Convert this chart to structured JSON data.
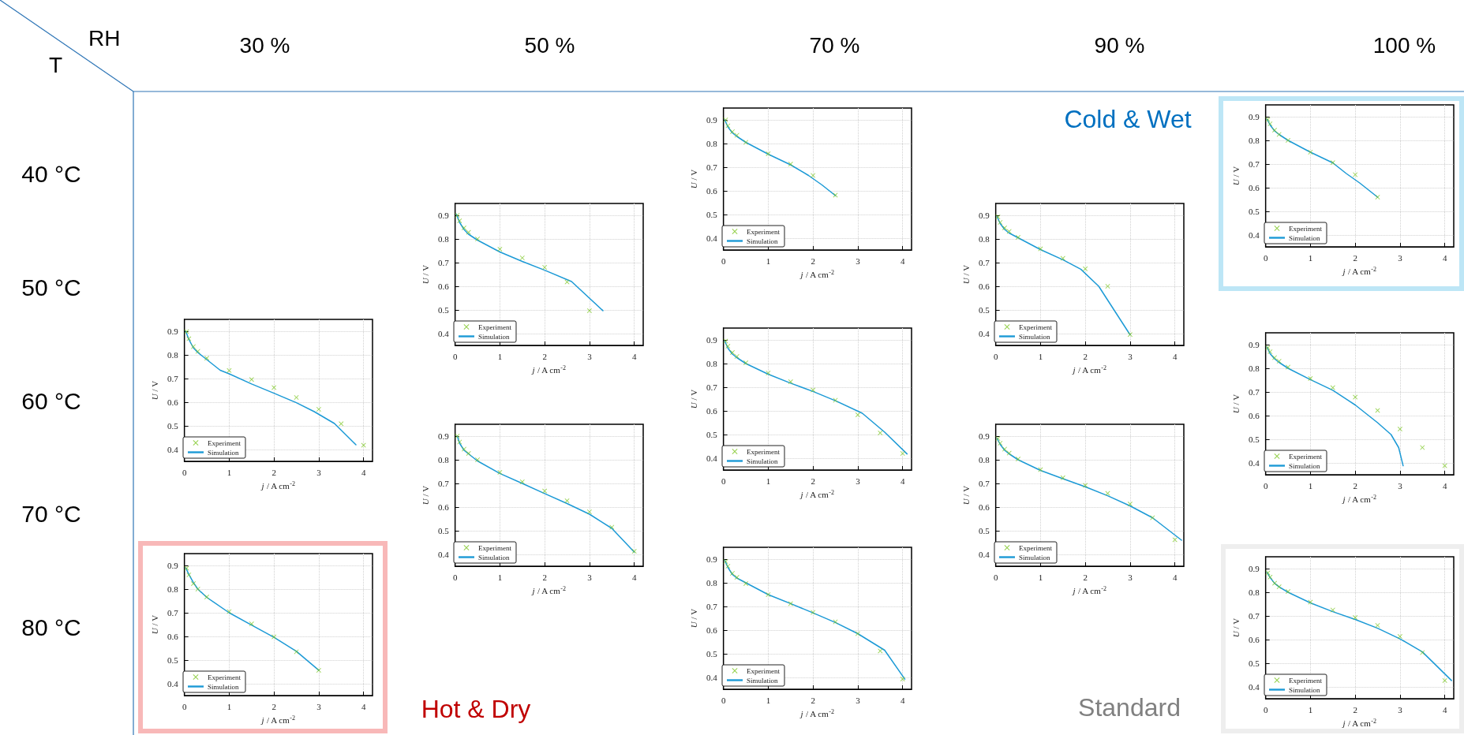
{
  "chart_data": [
    {
      "type": "heatmap",
      "xlabel": "RH",
      "ylabel": "T",
      "categories": [
        "30 %",
        "50 %",
        "70 %",
        "90 %",
        "100 %"
      ],
      "y_categories": [
        "40 °C",
        "50 °C",
        "60 °C",
        "70 °C",
        "80 °C"
      ],
      "cells": [
        [
          null,
          null,
          null,
          null,
          null
        ],
        [
          null,
          null,
          null,
          null,
          null
        ],
        [
          null,
          null,
          null,
          null,
          null
        ],
        [
          null,
          null,
          null,
          null,
          null
        ],
        [
          null,
          null,
          null,
          null,
          null
        ]
      ]
    },
    {
      "type": "line",
      "xlabel": "j / A cm$^{-2}$",
      "ylabel": "U / V",
      "xlim": [
        0,
        4.2
      ],
      "xticks": [
        0,
        1,
        2,
        3,
        4
      ],
      "ylim": [
        0.35,
        0.95
      ],
      "yticks": [
        0.4,
        0.5,
        0.6,
        0.7,
        0.8,
        0.9
      ],
      "grid": true,
      "legend": "bottom left",
      "series": [
        {
          "name": "Experiment",
          "type": "scatter",
          "marker": "cross",
          "color": "#7ac520",
          "x": [
            0.05,
            0.1,
            0.2,
            0.3,
            0.5,
            1,
            1.5,
            2,
            2.5
          ],
          "values": [
            0.9,
            0.875,
            0.85,
            0.835,
            0.805,
            0.757,
            0.713,
            0.665,
            0.582
          ]
        },
        {
          "name": "Simulation",
          "type": "line",
          "marker": "none",
          "line_style": "solid",
          "color": "#1c9ad6",
          "x": [
            0.03,
            0.1,
            0.2,
            0.3,
            0.5,
            1,
            1.5,
            1.9,
            2.2,
            2.5
          ],
          "values": [
            0.9,
            0.87,
            0.845,
            0.83,
            0.805,
            0.755,
            0.71,
            0.665,
            0.625,
            0.58
          ]
        }
      ]
    },
    {
      "type": "line",
      "xlabel": "j / A cm$^{-2}$",
      "ylabel": "U / V",
      "xlim": [
        0,
        4.2
      ],
      "xticks": [
        0,
        1,
        2,
        3,
        4
      ],
      "ylim": [
        0.35,
        0.95
      ],
      "yticks": [
        0.4,
        0.5,
        0.6,
        0.7,
        0.8,
        0.9
      ],
      "grid": true,
      "legend": "bottom left",
      "annotations": [
        "Cold & Wet"
      ],
      "series": [
        {
          "name": "Experiment",
          "type": "scatter",
          "marker": "cross",
          "color": "#7ac520",
          "x": [
            0.05,
            0.1,
            0.2,
            0.3,
            0.5,
            1,
            1.5,
            2,
            2.5
          ],
          "values": [
            0.888,
            0.87,
            0.843,
            0.825,
            0.8,
            0.75,
            0.706,
            0.655,
            0.56
          ]
        },
        {
          "name": "Simulation",
          "type": "line",
          "marker": "none",
          "line_style": "solid",
          "color": "#1c9ad6",
          "x": [
            0.03,
            0.1,
            0.2,
            0.3,
            0.5,
            1,
            1.5,
            1.8,
            2.1,
            2.5
          ],
          "values": [
            0.89,
            0.865,
            0.84,
            0.825,
            0.8,
            0.75,
            0.705,
            0.66,
            0.62,
            0.56
          ]
        }
      ]
    },
    {
      "type": "line",
      "xlabel": "j / A cm$^{-2}$",
      "ylabel": "U / V",
      "xlim": [
        0,
        4.2
      ],
      "xticks": [
        0,
        1,
        2,
        3,
        4
      ],
      "ylim": [
        0.35,
        0.95
      ],
      "yticks": [
        0.4,
        0.5,
        0.6,
        0.7,
        0.8,
        0.9
      ],
      "grid": true,
      "legend": "bottom left",
      "series": [
        {
          "name": "Experiment",
          "type": "scatter",
          "marker": "cross",
          "color": "#7ac520",
          "x": [
            0.05,
            0.1,
            0.2,
            0.3,
            0.5,
            1,
            1.5,
            2,
            2.5,
            3
          ],
          "values": [
            0.9,
            0.877,
            0.847,
            0.828,
            0.8,
            0.757,
            0.72,
            0.68,
            0.618,
            0.497
          ]
        },
        {
          "name": "Simulation",
          "type": "line",
          "marker": "none",
          "line_style": "solid",
          "color": "#1c9ad6",
          "x": [
            0.03,
            0.1,
            0.2,
            0.3,
            0.5,
            1,
            1.5,
            2,
            2.6,
            3.3
          ],
          "values": [
            0.905,
            0.87,
            0.84,
            0.82,
            0.795,
            0.745,
            0.705,
            0.668,
            0.62,
            0.497
          ]
        }
      ]
    },
    {
      "type": "line",
      "xlabel": "j / A cm$^{-2}$",
      "ylabel": "U / V",
      "xlim": [
        0,
        4.2
      ],
      "xticks": [
        0,
        1,
        2,
        3,
        4
      ],
      "ylim": [
        0.35,
        0.95
      ],
      "yticks": [
        0.4,
        0.5,
        0.6,
        0.7,
        0.8,
        0.9
      ],
      "grid": true,
      "legend": "bottom left",
      "series": [
        {
          "name": "Experiment",
          "type": "scatter",
          "marker": "cross",
          "color": "#7ac520",
          "x": [
            0.05,
            0.1,
            0.2,
            0.3,
            0.5,
            1,
            1.5,
            2,
            2.5,
            3
          ],
          "values": [
            0.893,
            0.87,
            0.847,
            0.832,
            0.807,
            0.758,
            0.718,
            0.674,
            0.6,
            0.396
          ]
        },
        {
          "name": "Simulation",
          "type": "line",
          "marker": "none",
          "line_style": "solid",
          "color": "#1c9ad6",
          "x": [
            0.03,
            0.1,
            0.2,
            0.3,
            0.5,
            1,
            1.5,
            1.9,
            2.3,
            3
          ],
          "values": [
            0.895,
            0.865,
            0.84,
            0.825,
            0.805,
            0.755,
            0.712,
            0.672,
            0.6,
            0.395
          ]
        }
      ]
    },
    {
      "type": "line",
      "xlabel": "j / A cm$^{-2}$",
      "ylabel": "U / V",
      "xlim": [
        0,
        4.2
      ],
      "xticks": [
        0,
        1,
        2,
        3,
        4
      ],
      "ylim": [
        0.35,
        0.95
      ],
      "yticks": [
        0.4,
        0.5,
        0.6,
        0.7,
        0.8,
        0.9
      ],
      "grid": true,
      "legend": "bottom left",
      "series": [
        {
          "name": "Experiment",
          "type": "scatter",
          "marker": "cross",
          "color": "#7ac520",
          "x": [
            0.05,
            0.1,
            0.2,
            0.3,
            0.5,
            1,
            1.5,
            2,
            2.5,
            3,
            3.5,
            4
          ],
          "values": [
            0.898,
            0.868,
            0.835,
            0.815,
            0.786,
            0.734,
            0.696,
            0.662,
            0.62,
            0.57,
            0.509,
            0.418
          ]
        },
        {
          "name": "Simulation",
          "type": "line",
          "marker": "none",
          "line_style": "solid",
          "color": "#1c9ad6",
          "x": [
            0.03,
            0.1,
            0.2,
            0.3,
            0.5,
            0.8,
            1,
            1.5,
            2,
            2.5,
            2.9,
            3.35,
            3.83
          ],
          "values": [
            0.9,
            0.865,
            0.83,
            0.81,
            0.78,
            0.735,
            0.72,
            0.677,
            0.638,
            0.598,
            0.56,
            0.51,
            0.42
          ]
        }
      ]
    },
    {
      "type": "line",
      "xlabel": "j / A cm$^{-2}$",
      "ylabel": "U / V",
      "xlim": [
        0,
        4.2
      ],
      "xticks": [
        0,
        1,
        2,
        3,
        4
      ],
      "ylim": [
        0.35,
        0.95
      ],
      "yticks": [
        0.4,
        0.5,
        0.6,
        0.7,
        0.8,
        0.9
      ],
      "grid": true,
      "legend": "bottom left",
      "series": [
        {
          "name": "Experiment",
          "type": "scatter",
          "marker": "cross",
          "color": "#7ac520",
          "x": [
            0.05,
            0.1,
            0.2,
            0.3,
            0.5,
            1,
            1.5,
            2,
            2.5,
            3,
            3.5,
            4
          ],
          "values": [
            0.895,
            0.873,
            0.847,
            0.83,
            0.803,
            0.76,
            0.723,
            0.688,
            0.645,
            0.583,
            0.507,
            0.42
          ]
        },
        {
          "name": "Simulation",
          "type": "line",
          "marker": "none",
          "line_style": "solid",
          "color": "#1c9ad6",
          "x": [
            0.03,
            0.1,
            0.2,
            0.3,
            0.5,
            1,
            1.5,
            2,
            2.5,
            3.1,
            3.6,
            4.1
          ],
          "values": [
            0.895,
            0.865,
            0.84,
            0.825,
            0.8,
            0.755,
            0.717,
            0.682,
            0.643,
            0.59,
            0.51,
            0.418
          ]
        }
      ]
    },
    {
      "type": "line",
      "xlabel": "j / A cm$^{-2}$",
      "ylabel": "U / V",
      "xlim": [
        0,
        4.2
      ],
      "xticks": [
        0,
        1,
        2,
        3,
        4
      ],
      "ylim": [
        0.35,
        0.95
      ],
      "yticks": [
        0.4,
        0.5,
        0.6,
        0.7,
        0.8,
        0.9
      ],
      "grid": true,
      "legend": "bottom left",
      "series": [
        {
          "name": "Experiment",
          "type": "scatter",
          "marker": "cross",
          "color": "#7ac520",
          "x": [
            0.05,
            0.1,
            0.2,
            0.3,
            0.5,
            1,
            1.5,
            2,
            2.5,
            3,
            3.5,
            4
          ],
          "values": [
            0.887,
            0.87,
            0.845,
            0.83,
            0.805,
            0.757,
            0.718,
            0.678,
            0.622,
            0.543,
            0.465,
            0.388
          ]
        },
        {
          "name": "Simulation",
          "type": "line",
          "marker": "none",
          "line_style": "solid",
          "color": "#1c9ad6",
          "x": [
            0.03,
            0.1,
            0.2,
            0.3,
            0.5,
            1,
            1.5,
            2,
            2.5,
            2.8,
            2.97,
            3.07
          ],
          "values": [
            0.89,
            0.862,
            0.84,
            0.825,
            0.8,
            0.752,
            0.707,
            0.645,
            0.57,
            0.52,
            0.465,
            0.388
          ]
        }
      ]
    },
    {
      "type": "line",
      "xlabel": "j / A cm$^{-2}$",
      "ylabel": "U / V",
      "xlim": [
        0,
        4.2
      ],
      "xticks": [
        0,
        1,
        2,
        3,
        4
      ],
      "ylim": [
        0.35,
        0.95
      ],
      "yticks": [
        0.4,
        0.5,
        0.6,
        0.7,
        0.8,
        0.9
      ],
      "grid": true,
      "legend": "bottom left",
      "series": [
        {
          "name": "Experiment",
          "type": "scatter",
          "marker": "cross",
          "color": "#7ac520",
          "x": [
            0.05,
            0.1,
            0.2,
            0.3,
            0.5,
            1,
            1.5,
            2,
            2.5,
            3,
            3.5,
            4
          ],
          "values": [
            0.9,
            0.875,
            0.845,
            0.827,
            0.8,
            0.747,
            0.707,
            0.668,
            0.627,
            0.58,
            0.515,
            0.413
          ]
        },
        {
          "name": "Simulation",
          "type": "line",
          "marker": "none",
          "line_style": "solid",
          "color": "#1c9ad6",
          "x": [
            0.05,
            0.1,
            0.2,
            0.3,
            0.5,
            1,
            1.5,
            2,
            2.5,
            3,
            3.5,
            4
          ],
          "values": [
            0.9,
            0.87,
            0.84,
            0.825,
            0.795,
            0.742,
            0.7,
            0.657,
            0.615,
            0.57,
            0.51,
            0.41
          ]
        }
      ]
    },
    {
      "type": "line",
      "xlabel": "j / A cm$^{-2}$",
      "ylabel": "U / V",
      "xlim": [
        0,
        4.2
      ],
      "xticks": [
        0,
        1,
        2,
        3,
        4
      ],
      "ylim": [
        0.35,
        0.95
      ],
      "yticks": [
        0.4,
        0.5,
        0.6,
        0.7,
        0.8,
        0.9
      ],
      "grid": true,
      "legend": "bottom left",
      "series": [
        {
          "name": "Experiment",
          "type": "scatter",
          "marker": "cross",
          "color": "#7ac520",
          "x": [
            0.05,
            0.1,
            0.2,
            0.3,
            0.5,
            1,
            1.5,
            2,
            2.5,
            3,
            3.5,
            4
          ],
          "values": [
            0.89,
            0.87,
            0.845,
            0.828,
            0.803,
            0.758,
            0.724,
            0.692,
            0.658,
            0.613,
            0.555,
            0.462
          ]
        },
        {
          "name": "Simulation",
          "type": "line",
          "marker": "none",
          "line_style": "solid",
          "color": "#1c9ad6",
          "x": [
            0.03,
            0.1,
            0.2,
            0.3,
            0.5,
            1,
            1.5,
            2,
            2.5,
            3,
            3.5,
            4.15
          ],
          "values": [
            0.89,
            0.865,
            0.84,
            0.825,
            0.8,
            0.755,
            0.72,
            0.686,
            0.648,
            0.605,
            0.555,
            0.46
          ]
        }
      ]
    },
    {
      "type": "line",
      "xlabel": "j / A cm$^{-2}$",
      "ylabel": "U / V",
      "xlim": [
        0,
        4.2
      ],
      "xticks": [
        0,
        1,
        2,
        3,
        4
      ],
      "ylim": [
        0.35,
        0.95
      ],
      "yticks": [
        0.4,
        0.5,
        0.6,
        0.7,
        0.8,
        0.9
      ],
      "grid": true,
      "legend": "bottom left",
      "annotations": [
        "Hot & Dry"
      ],
      "series": [
        {
          "name": "Experiment",
          "type": "scatter",
          "marker": "cross",
          "color": "#7ac520",
          "x": [
            0.05,
            0.1,
            0.2,
            0.3,
            0.5,
            1,
            1.5,
            2,
            2.5,
            3
          ],
          "values": [
            0.888,
            0.86,
            0.823,
            0.8,
            0.767,
            0.705,
            0.653,
            0.598,
            0.535,
            0.457
          ]
        },
        {
          "name": "Simulation",
          "type": "line",
          "marker": "none",
          "line_style": "solid",
          "color": "#1c9ad6",
          "x": [
            0.03,
            0.1,
            0.2,
            0.3,
            0.5,
            1,
            1.5,
            2,
            2.5,
            3
          ],
          "values": [
            0.89,
            0.862,
            0.828,
            0.8,
            0.765,
            0.7,
            0.648,
            0.596,
            0.537,
            0.457
          ]
        }
      ]
    },
    {
      "type": "line",
      "xlabel": "j / A cm$^{-2}$",
      "ylabel": "U / V",
      "xlim": [
        0,
        4.2
      ],
      "xticks": [
        0,
        1,
        2,
        3,
        4
      ],
      "ylim": [
        0.35,
        0.95
      ],
      "yticks": [
        0.4,
        0.5,
        0.6,
        0.7,
        0.8,
        0.9
      ],
      "grid": true,
      "legend": "bottom left",
      "series": [
        {
          "name": "Experiment",
          "type": "scatter",
          "marker": "cross",
          "color": "#7ac520",
          "x": [
            0.05,
            0.1,
            0.2,
            0.3,
            0.5,
            1,
            1.5,
            2,
            2.5,
            3,
            3.5,
            4
          ],
          "values": [
            0.89,
            0.87,
            0.84,
            0.823,
            0.797,
            0.75,
            0.712,
            0.675,
            0.635,
            0.585,
            0.512,
            0.393
          ]
        },
        {
          "name": "Simulation",
          "type": "line",
          "marker": "none",
          "line_style": "solid",
          "color": "#1c9ad6",
          "x": [
            0.03,
            0.1,
            0.2,
            0.3,
            0.5,
            1,
            1.5,
            2,
            2.5,
            3,
            3.6,
            4.05
          ],
          "values": [
            0.895,
            0.865,
            0.835,
            0.82,
            0.8,
            0.75,
            0.712,
            0.673,
            0.632,
            0.585,
            0.515,
            0.393
          ]
        }
      ]
    },
    {
      "type": "line",
      "xlabel": "j / A cm$^{-2}$",
      "ylabel": "U / V",
      "xlim": [
        0,
        4.2
      ],
      "xticks": [
        0,
        1,
        2,
        3,
        4
      ],
      "ylim": [
        0.35,
        0.95
      ],
      "yticks": [
        0.4,
        0.5,
        0.6,
        0.7,
        0.8,
        0.9
      ],
      "grid": true,
      "legend": "bottom left",
      "annotations": [
        "Standard"
      ],
      "series": [
        {
          "name": "Experiment",
          "type": "scatter",
          "marker": "cross",
          "color": "#7ac520",
          "x": [
            0.05,
            0.1,
            0.2,
            0.3,
            0.5,
            1,
            1.5,
            2,
            2.5,
            3,
            3.5,
            4
          ],
          "values": [
            0.882,
            0.864,
            0.838,
            0.823,
            0.803,
            0.758,
            0.725,
            0.693,
            0.66,
            0.613,
            0.545,
            0.427
          ]
        },
        {
          "name": "Simulation",
          "type": "line",
          "marker": "none",
          "line_style": "solid",
          "color": "#1c9ad6",
          "x": [
            0.03,
            0.1,
            0.2,
            0.3,
            0.5,
            1,
            1.5,
            2,
            2.5,
            3,
            3.5,
            4.15
          ],
          "values": [
            0.885,
            0.862,
            0.838,
            0.823,
            0.8,
            0.755,
            0.718,
            0.685,
            0.648,
            0.603,
            0.548,
            0.427
          ]
        }
      ]
    }
  ]
}
